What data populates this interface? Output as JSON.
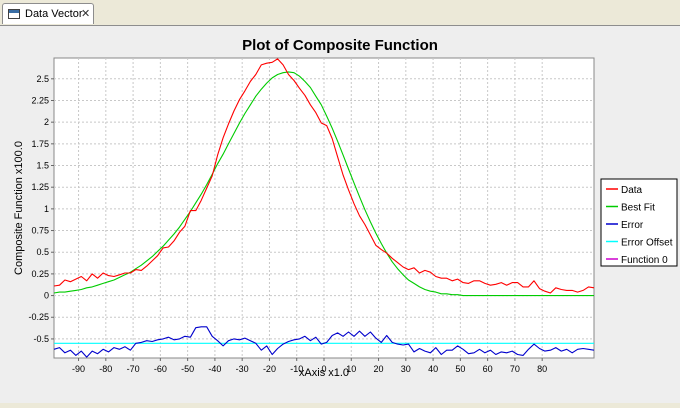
{
  "tab": {
    "label": "Data Vector",
    "close_glyph": "✕",
    "icon": "window-icon"
  },
  "chart_data": {
    "type": "line",
    "title": "Plot of Composite Function",
    "xlabel": "xAxis x1.0",
    "ylabel": "Composite Function x100.0",
    "xlim": [
      -99,
      99
    ],
    "ylim": [
      -0.72,
      2.74
    ],
    "xticks": [
      -90,
      -80,
      -70,
      -60,
      -50,
      -40,
      -30,
      -20,
      -10,
      0,
      10,
      20,
      30,
      40,
      50,
      60,
      70,
      80
    ],
    "yticks": [
      -0.5,
      -0.25,
      0,
      0.25,
      0.5,
      0.75,
      1,
      1.25,
      1.5,
      1.75,
      2,
      2.25,
      2.5
    ],
    "ytick_labels": [
      "-0.5",
      "-0.25",
      "0",
      "0.25",
      "0.5",
      "0.75",
      "1",
      "1.25",
      "1.5",
      "1.75",
      "2",
      "2.25",
      "2.5"
    ],
    "grid": true,
    "legend_position": "right",
    "series": [
      {
        "name": "Data",
        "color": "#ff0000",
        "x": [
          -99,
          -97,
          -95,
          -93,
          -91,
          -89,
          -87,
          -85,
          -83,
          -81,
          -79,
          -77,
          -75,
          -73,
          -71,
          -69,
          -67,
          -65,
          -63,
          -61,
          -59,
          -57,
          -55,
          -53,
          -51,
          -49,
          -47,
          -45,
          -43,
          -41,
          -39,
          -37,
          -35,
          -33,
          -31,
          -29,
          -27,
          -25,
          -23,
          -21,
          -19,
          -17,
          -15,
          -13,
          -11,
          -9,
          -7,
          -5,
          -3,
          -1,
          1,
          3,
          5,
          7,
          9,
          11,
          13,
          15,
          17,
          19,
          21,
          23,
          25,
          27,
          29,
          31,
          33,
          35,
          37,
          39,
          41,
          43,
          45,
          47,
          49,
          51,
          53,
          55,
          57,
          59,
          61,
          63,
          65,
          67,
          69,
          71,
          73,
          75,
          77,
          79,
          81,
          83,
          85,
          87,
          89,
          91,
          93,
          95,
          97,
          99
        ],
        "y": [
          0.11,
          0.12,
          0.18,
          0.16,
          0.19,
          0.22,
          0.17,
          0.25,
          0.2,
          0.26,
          0.23,
          0.22,
          0.24,
          0.26,
          0.26,
          0.3,
          0.29,
          0.34,
          0.4,
          0.46,
          0.55,
          0.56,
          0.63,
          0.73,
          0.8,
          0.98,
          0.98,
          1.1,
          1.24,
          1.38,
          1.62,
          1.82,
          1.98,
          2.13,
          2.26,
          2.36,
          2.47,
          2.55,
          2.66,
          2.68,
          2.69,
          2.73,
          2.66,
          2.55,
          2.48,
          2.39,
          2.31,
          2.2,
          2.11,
          1.99,
          1.96,
          1.81,
          1.6,
          1.39,
          1.22,
          1.06,
          0.92,
          0.82,
          0.7,
          0.58,
          0.53,
          0.49,
          0.43,
          0.38,
          0.33,
          0.3,
          0.32,
          0.26,
          0.29,
          0.27,
          0.22,
          0.2,
          0.2,
          0.17,
          0.19,
          0.15,
          0.14,
          0.17,
          0.17,
          0.14,
          0.12,
          0.13,
          0.15,
          0.12,
          0.15,
          0.15,
          0.1,
          0.1,
          0.17,
          0.08,
          0.05,
          0.03,
          0.09,
          0.07,
          0.06,
          0.06,
          0.04,
          0.06,
          0.1,
          0.09
        ]
      },
      {
        "name": "Best Fit",
        "color": "#00cc00",
        "x": [
          -99,
          -97,
          -95,
          -93,
          -91,
          -89,
          -87,
          -85,
          -83,
          -81,
          -79,
          -77,
          -75,
          -73,
          -71,
          -69,
          -67,
          -65,
          -63,
          -61,
          -59,
          -57,
          -55,
          -53,
          -51,
          -49,
          -47,
          -45,
          -43,
          -41,
          -39,
          -37,
          -35,
          -33,
          -31,
          -29,
          -27,
          -25,
          -23,
          -21,
          -19,
          -17,
          -15,
          -13,
          -11,
          -9,
          -7,
          -5,
          -3,
          -1,
          1,
          3,
          5,
          7,
          9,
          11,
          13,
          15,
          17,
          19,
          21,
          23,
          25,
          27,
          29,
          31,
          33,
          35,
          37,
          39,
          41,
          43,
          45,
          47,
          49,
          51,
          53,
          55,
          57,
          59,
          61,
          63,
          65,
          67,
          69,
          71,
          73,
          75,
          77,
          79,
          81,
          83,
          85,
          87,
          89,
          91,
          93,
          95,
          97,
          99
        ],
        "y": [
          0.03,
          0.04,
          0.04,
          0.05,
          0.06,
          0.07,
          0.09,
          0.1,
          0.12,
          0.14,
          0.16,
          0.18,
          0.21,
          0.24,
          0.27,
          0.31,
          0.35,
          0.4,
          0.45,
          0.51,
          0.57,
          0.64,
          0.71,
          0.79,
          0.88,
          0.97,
          1.07,
          1.17,
          1.28,
          1.4,
          1.52,
          1.63,
          1.75,
          1.87,
          1.99,
          2.1,
          2.2,
          2.3,
          2.38,
          2.45,
          2.51,
          2.55,
          2.57,
          2.58,
          2.57,
          2.53,
          2.47,
          2.4,
          2.3,
          2.2,
          2.07,
          1.93,
          1.78,
          1.62,
          1.46,
          1.3,
          1.14,
          0.99,
          0.85,
          0.72,
          0.6,
          0.49,
          0.39,
          0.31,
          0.24,
          0.18,
          0.14,
          0.1,
          0.07,
          0.05,
          0.04,
          0.02,
          0.02,
          0.01,
          0.01,
          0.0,
          0.0,
          0.0,
          0.0,
          0.0,
          0.0,
          0.0,
          0.0,
          0.0,
          0.0,
          0.0,
          0.0,
          0.0,
          0.0,
          0.0,
          0.0,
          0.0,
          0.0,
          0.0,
          0.0,
          0.0,
          0.0,
          0.0,
          0.0,
          0.0
        ]
      },
      {
        "name": "Error",
        "color": "#0000cc",
        "x": [
          -99,
          -97,
          -95,
          -93,
          -91,
          -89,
          -87,
          -85,
          -83,
          -81,
          -79,
          -77,
          -75,
          -73,
          -71,
          -69,
          -67,
          -65,
          -63,
          -61,
          -59,
          -57,
          -55,
          -53,
          -51,
          -49,
          -47,
          -45,
          -43,
          -41,
          -39,
          -37,
          -35,
          -33,
          -31,
          -29,
          -27,
          -25,
          -23,
          -21,
          -19,
          -17,
          -15,
          -13,
          -11,
          -9,
          -7,
          -5,
          -3,
          -1,
          1,
          3,
          5,
          7,
          9,
          11,
          13,
          15,
          17,
          19,
          21,
          23,
          25,
          27,
          29,
          31,
          33,
          35,
          37,
          39,
          41,
          43,
          45,
          47,
          49,
          51,
          53,
          55,
          57,
          59,
          61,
          63,
          65,
          67,
          69,
          71,
          73,
          75,
          77,
          79,
          81,
          83,
          85,
          87,
          89,
          91,
          93,
          95,
          97,
          99
        ],
        "y": [
          -0.62,
          -0.6,
          -0.66,
          -0.63,
          -0.69,
          -0.64,
          -0.71,
          -0.64,
          -0.67,
          -0.62,
          -0.65,
          -0.6,
          -0.62,
          -0.59,
          -0.63,
          -0.55,
          -0.54,
          -0.52,
          -0.53,
          -0.51,
          -0.5,
          -0.48,
          -0.51,
          -0.5,
          -0.47,
          -0.48,
          -0.37,
          -0.36,
          -0.36,
          -0.47,
          -0.52,
          -0.58,
          -0.52,
          -0.5,
          -0.51,
          -0.49,
          -0.52,
          -0.55,
          -0.63,
          -0.58,
          -0.68,
          -0.61,
          -0.56,
          -0.53,
          -0.51,
          -0.5,
          -0.47,
          -0.52,
          -0.48,
          -0.56,
          -0.54,
          -0.46,
          -0.43,
          -0.47,
          -0.42,
          -0.47,
          -0.41,
          -0.47,
          -0.42,
          -0.49,
          -0.54,
          -0.46,
          -0.54,
          -0.56,
          -0.57,
          -0.56,
          -0.65,
          -0.61,
          -0.64,
          -0.66,
          -0.6,
          -0.68,
          -0.63,
          -0.63,
          -0.58,
          -0.62,
          -0.67,
          -0.66,
          -0.62,
          -0.66,
          -0.63,
          -0.68,
          -0.65,
          -0.66,
          -0.64,
          -0.68,
          -0.69,
          -0.62,
          -0.56,
          -0.61,
          -0.64,
          -0.63,
          -0.6,
          -0.64,
          -0.62,
          -0.66,
          -0.62,
          -0.61,
          -0.62,
          -0.63
        ]
      },
      {
        "name": "Error Offset",
        "color": "#00ffff",
        "x": [
          -99,
          99
        ],
        "y": [
          -0.55,
          -0.55
        ]
      },
      {
        "name": "Function 0",
        "color": "#cc00cc",
        "x": [],
        "y": []
      }
    ]
  }
}
